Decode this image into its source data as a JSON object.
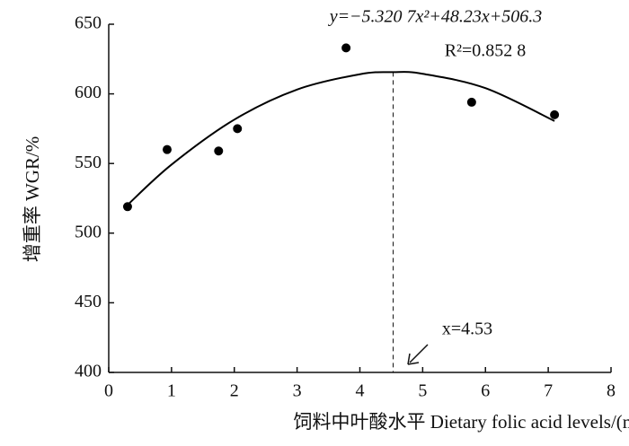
{
  "chart_data": {
    "type": "scatter",
    "x_label": "饲料中叶酸水平  Dietary folic acid levels/(mg/kg)",
    "y_label": "增重率  WGR/%",
    "xlim": [
      0,
      8
    ],
    "xticks": [
      0,
      1,
      2,
      3,
      4,
      5,
      6,
      7,
      8
    ],
    "ylim": [
      400,
      650
    ],
    "yticks": [
      400,
      450,
      500,
      550,
      600,
      650
    ],
    "series": [
      {
        "color": "#000000",
        "x": [
          0.3,
          0.93,
          1.75,
          2.05,
          3.78,
          5.78,
          7.1
        ],
        "values": [
          519,
          560,
          559,
          575,
          633,
          594,
          585
        ]
      },
      {
        "type": "line",
        "color": "#000000",
        "x": [
          0.3,
          1,
          2,
          3,
          4,
          4.53,
          5,
          6,
          7.1
        ],
        "values": [
          520.3,
          549.2,
          581.5,
          603.1,
          614.1,
          615.6,
          614.4,
          604.1,
          580.5
        ]
      }
    ],
    "vline": 4.53,
    "annotations": [
      "y=−5.320 7x²+48.23x+506.3",
      "R²=0.852 8",
      "x=4.53"
    ]
  }
}
